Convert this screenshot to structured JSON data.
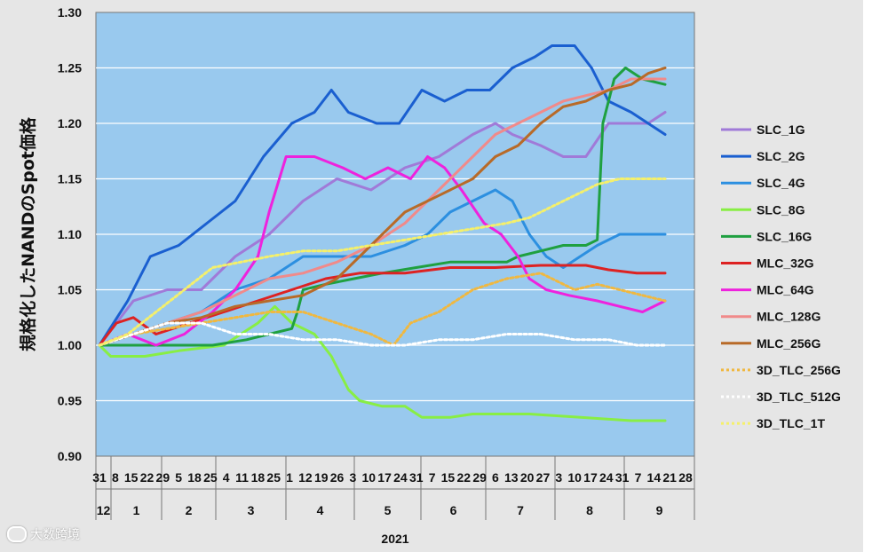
{
  "chart_data": {
    "type": "line",
    "ylabel": "規格化したNANDのSpot価格",
    "ylim": [
      0.9,
      1.3
    ],
    "yticks": [
      "0.90",
      "0.95",
      "1.00",
      "1.05",
      "1.10",
      "1.15",
      "1.20",
      "1.25",
      "1.30"
    ],
    "x_day_labels": [
      "31",
      "8",
      "15",
      "22",
      "29",
      "5",
      "18",
      "25",
      "4",
      "11",
      "18",
      "25",
      "1",
      "12",
      "19",
      "26",
      "3",
      "10",
      "17",
      "24",
      "31",
      "7",
      "15",
      "22",
      "29",
      "6",
      "13",
      "20",
      "27",
      "3",
      "10",
      "17",
      "24",
      "31",
      "7",
      "14",
      "21",
      "28"
    ],
    "x_month_labels": [
      "12",
      "1",
      "2",
      "3",
      "4",
      "5",
      "6",
      "7",
      "8",
      "9"
    ],
    "x_year_label": "2021",
    "legend_position": "right",
    "series": [
      {
        "name": "SLC_1G",
        "color": "#a07ad8",
        "style": "solid",
        "points": [
          [
            0,
            1.0
          ],
          [
            0.03,
            1.02
          ],
          [
            0.06,
            1.04
          ],
          [
            0.12,
            1.05
          ],
          [
            0.18,
            1.05
          ],
          [
            0.24,
            1.08
          ],
          [
            0.3,
            1.1
          ],
          [
            0.36,
            1.13
          ],
          [
            0.42,
            1.15
          ],
          [
            0.48,
            1.14
          ],
          [
            0.54,
            1.16
          ],
          [
            0.6,
            1.17
          ],
          [
            0.66,
            1.19
          ],
          [
            0.7,
            1.2
          ],
          [
            0.73,
            1.19
          ],
          [
            0.78,
            1.18
          ],
          [
            0.82,
            1.17
          ],
          [
            0.86,
            1.17
          ],
          [
            0.9,
            1.2
          ],
          [
            0.94,
            1.2
          ],
          [
            0.97,
            1.2
          ],
          [
            1.0,
            1.21
          ]
        ]
      },
      {
        "name": "SLC_2G",
        "color": "#1a5fd0",
        "style": "solid",
        "points": [
          [
            0,
            1.0
          ],
          [
            0.05,
            1.04
          ],
          [
            0.09,
            1.08
          ],
          [
            0.14,
            1.09
          ],
          [
            0.19,
            1.11
          ],
          [
            0.24,
            1.13
          ],
          [
            0.29,
            1.17
          ],
          [
            0.34,
            1.2
          ],
          [
            0.38,
            1.21
          ],
          [
            0.41,
            1.23
          ],
          [
            0.44,
            1.21
          ],
          [
            0.49,
            1.2
          ],
          [
            0.53,
            1.2
          ],
          [
            0.57,
            1.23
          ],
          [
            0.61,
            1.22
          ],
          [
            0.65,
            1.23
          ],
          [
            0.69,
            1.23
          ],
          [
            0.73,
            1.25
          ],
          [
            0.77,
            1.26
          ],
          [
            0.8,
            1.27
          ],
          [
            0.84,
            1.27
          ],
          [
            0.87,
            1.25
          ],
          [
            0.9,
            1.22
          ],
          [
            0.94,
            1.21
          ],
          [
            0.97,
            1.2
          ],
          [
            1.0,
            1.19
          ]
        ]
      },
      {
        "name": "SLC_4G",
        "color": "#2c8fe0",
        "style": "solid",
        "points": [
          [
            0,
            1.0
          ],
          [
            0.06,
            1.01
          ],
          [
            0.12,
            1.02
          ],
          [
            0.18,
            1.03
          ],
          [
            0.24,
            1.05
          ],
          [
            0.3,
            1.06
          ],
          [
            0.36,
            1.08
          ],
          [
            0.42,
            1.08
          ],
          [
            0.48,
            1.08
          ],
          [
            0.54,
            1.09
          ],
          [
            0.58,
            1.1
          ],
          [
            0.62,
            1.12
          ],
          [
            0.66,
            1.13
          ],
          [
            0.7,
            1.14
          ],
          [
            0.73,
            1.13
          ],
          [
            0.76,
            1.1
          ],
          [
            0.79,
            1.08
          ],
          [
            0.82,
            1.07
          ],
          [
            0.85,
            1.08
          ],
          [
            0.88,
            1.09
          ],
          [
            0.92,
            1.1
          ],
          [
            0.96,
            1.1
          ],
          [
            1.0,
            1.1
          ]
        ]
      },
      {
        "name": "SLC_8G",
        "color": "#88ee44",
        "style": "solid",
        "points": [
          [
            0,
            1.0
          ],
          [
            0.02,
            0.99
          ],
          [
            0.08,
            0.99
          ],
          [
            0.14,
            0.995
          ],
          [
            0.22,
            1.0
          ],
          [
            0.28,
            1.02
          ],
          [
            0.31,
            1.035
          ],
          [
            0.34,
            1.02
          ],
          [
            0.38,
            1.01
          ],
          [
            0.41,
            0.99
          ],
          [
            0.44,
            0.96
          ],
          [
            0.46,
            0.95
          ],
          [
            0.5,
            0.945
          ],
          [
            0.54,
            0.945
          ],
          [
            0.57,
            0.935
          ],
          [
            0.62,
            0.935
          ],
          [
            0.66,
            0.938
          ],
          [
            0.7,
            0.938
          ],
          [
            0.76,
            0.938
          ],
          [
            0.82,
            0.936
          ],
          [
            0.88,
            0.934
          ],
          [
            0.94,
            0.932
          ],
          [
            1.0,
            0.932
          ]
        ]
      },
      {
        "name": "SLC_16G",
        "color": "#1fa040",
        "style": "solid",
        "points": [
          [
            0,
            1.0
          ],
          [
            0.06,
            1.0
          ],
          [
            0.12,
            1.0
          ],
          [
            0.2,
            1.0
          ],
          [
            0.26,
            1.005
          ],
          [
            0.3,
            1.01
          ],
          [
            0.34,
            1.015
          ],
          [
            0.35,
            1.03
          ],
          [
            0.36,
            1.05
          ],
          [
            0.4,
            1.055
          ],
          [
            0.45,
            1.06
          ],
          [
            0.5,
            1.065
          ],
          [
            0.56,
            1.07
          ],
          [
            0.62,
            1.075
          ],
          [
            0.68,
            1.075
          ],
          [
            0.72,
            1.075
          ],
          [
            0.74,
            1.08
          ],
          [
            0.78,
            1.085
          ],
          [
            0.82,
            1.09
          ],
          [
            0.86,
            1.09
          ],
          [
            0.88,
            1.095
          ],
          [
            0.89,
            1.2
          ],
          [
            0.91,
            1.24
          ],
          [
            0.93,
            1.25
          ],
          [
            0.96,
            1.24
          ],
          [
            1.0,
            1.235
          ]
        ]
      },
      {
        "name": "MLC_32G",
        "color": "#dd2222",
        "style": "solid",
        "points": [
          [
            0,
            1.0
          ],
          [
            0.03,
            1.02
          ],
          [
            0.06,
            1.025
          ],
          [
            0.1,
            1.01
          ],
          [
            0.16,
            1.02
          ],
          [
            0.22,
            1.03
          ],
          [
            0.28,
            1.04
          ],
          [
            0.34,
            1.05
          ],
          [
            0.4,
            1.06
          ],
          [
            0.46,
            1.065
          ],
          [
            0.54,
            1.065
          ],
          [
            0.62,
            1.07
          ],
          [
            0.7,
            1.07
          ],
          [
            0.78,
            1.072
          ],
          [
            0.86,
            1.072
          ],
          [
            0.9,
            1.068
          ],
          [
            0.95,
            1.065
          ],
          [
            1.0,
            1.065
          ]
        ]
      },
      {
        "name": "MLC_64G",
        "color": "#ee22dd",
        "style": "solid",
        "points": [
          [
            0,
            1.0
          ],
          [
            0.05,
            1.01
          ],
          [
            0.1,
            1.0
          ],
          [
            0.15,
            1.01
          ],
          [
            0.2,
            1.03
          ],
          [
            0.24,
            1.05
          ],
          [
            0.28,
            1.08
          ],
          [
            0.3,
            1.12
          ],
          [
            0.33,
            1.17
          ],
          [
            0.38,
            1.17
          ],
          [
            0.43,
            1.16
          ],
          [
            0.47,
            1.15
          ],
          [
            0.51,
            1.16
          ],
          [
            0.55,
            1.15
          ],
          [
            0.58,
            1.17
          ],
          [
            0.61,
            1.16
          ],
          [
            0.64,
            1.14
          ],
          [
            0.68,
            1.11
          ],
          [
            0.71,
            1.1
          ],
          [
            0.74,
            1.08
          ],
          [
            0.76,
            1.06
          ],
          [
            0.79,
            1.05
          ],
          [
            0.83,
            1.045
          ],
          [
            0.88,
            1.04
          ],
          [
            0.92,
            1.035
          ],
          [
            0.96,
            1.03
          ],
          [
            1.0,
            1.04
          ]
        ]
      },
      {
        "name": "MLC_128G",
        "color": "#f08a8a",
        "style": "solid",
        "points": [
          [
            0,
            1.0
          ],
          [
            0.06,
            1.01
          ],
          [
            0.12,
            1.02
          ],
          [
            0.18,
            1.03
          ],
          [
            0.24,
            1.045
          ],
          [
            0.3,
            1.06
          ],
          [
            0.36,
            1.065
          ],
          [
            0.42,
            1.075
          ],
          [
            0.48,
            1.09
          ],
          [
            0.54,
            1.11
          ],
          [
            0.6,
            1.14
          ],
          [
            0.66,
            1.17
          ],
          [
            0.7,
            1.19
          ],
          [
            0.74,
            1.2
          ],
          [
            0.78,
            1.21
          ],
          [
            0.82,
            1.22
          ],
          [
            0.86,
            1.225
          ],
          [
            0.9,
            1.23
          ],
          [
            0.94,
            1.24
          ],
          [
            1.0,
            1.24
          ]
        ]
      },
      {
        "name": "MLC_256G",
        "color": "#b86a28",
        "style": "solid",
        "points": [
          [
            0,
            1.0
          ],
          [
            0.06,
            1.01
          ],
          [
            0.12,
            1.02
          ],
          [
            0.18,
            1.025
          ],
          [
            0.24,
            1.035
          ],
          [
            0.3,
            1.04
          ],
          [
            0.36,
            1.045
          ],
          [
            0.42,
            1.06
          ],
          [
            0.48,
            1.09
          ],
          [
            0.54,
            1.12
          ],
          [
            0.6,
            1.135
          ],
          [
            0.66,
            1.15
          ],
          [
            0.7,
            1.17
          ],
          [
            0.74,
            1.18
          ],
          [
            0.78,
            1.2
          ],
          [
            0.82,
            1.215
          ],
          [
            0.86,
            1.22
          ],
          [
            0.9,
            1.23
          ],
          [
            0.94,
            1.235
          ],
          [
            0.97,
            1.245
          ],
          [
            1.0,
            1.25
          ]
        ]
      },
      {
        "name": "3D_TLC_256G",
        "color": "#f0b840",
        "style": "dotted",
        "points": [
          [
            0,
            1.0
          ],
          [
            0.06,
            1.01
          ],
          [
            0.12,
            1.015
          ],
          [
            0.18,
            1.02
          ],
          [
            0.24,
            1.025
          ],
          [
            0.3,
            1.03
          ],
          [
            0.36,
            1.03
          ],
          [
            0.42,
            1.02
          ],
          [
            0.48,
            1.01
          ],
          [
            0.52,
            1.0
          ],
          [
            0.55,
            1.02
          ],
          [
            0.6,
            1.03
          ],
          [
            0.66,
            1.05
          ],
          [
            0.72,
            1.06
          ],
          [
            0.78,
            1.065
          ],
          [
            0.84,
            1.05
          ],
          [
            0.88,
            1.055
          ],
          [
            0.92,
            1.05
          ],
          [
            0.96,
            1.045
          ],
          [
            1.0,
            1.04
          ]
        ]
      },
      {
        "name": "3D_TLC_512G",
        "color": "#ffffff",
        "style": "dotted",
        "points": [
          [
            0,
            1.0
          ],
          [
            0.06,
            1.01
          ],
          [
            0.12,
            1.02
          ],
          [
            0.18,
            1.02
          ],
          [
            0.24,
            1.01
          ],
          [
            0.3,
            1.01
          ],
          [
            0.36,
            1.005
          ],
          [
            0.42,
            1.005
          ],
          [
            0.48,
            1.0
          ],
          [
            0.54,
            1.0
          ],
          [
            0.6,
            1.005
          ],
          [
            0.66,
            1.005
          ],
          [
            0.72,
            1.01
          ],
          [
            0.78,
            1.01
          ],
          [
            0.84,
            1.005
          ],
          [
            0.9,
            1.005
          ],
          [
            0.95,
            1.0
          ],
          [
            1.0,
            1.0
          ]
        ]
      },
      {
        "name": "3D_TLC_1T",
        "color": "#f5f06a",
        "style": "dotted",
        "points": [
          [
            0,
            1.0
          ],
          [
            0.05,
            1.01
          ],
          [
            0.1,
            1.03
          ],
          [
            0.15,
            1.05
          ],
          [
            0.2,
            1.07
          ],
          [
            0.25,
            1.075
          ],
          [
            0.3,
            1.08
          ],
          [
            0.36,
            1.085
          ],
          [
            0.42,
            1.085
          ],
          [
            0.48,
            1.09
          ],
          [
            0.54,
            1.095
          ],
          [
            0.6,
            1.1
          ],
          [
            0.66,
            1.105
          ],
          [
            0.72,
            1.11
          ],
          [
            0.76,
            1.115
          ],
          [
            0.8,
            1.125
          ],
          [
            0.84,
            1.135
          ],
          [
            0.88,
            1.145
          ],
          [
            0.92,
            1.15
          ],
          [
            0.96,
            1.15
          ],
          [
            1.0,
            1.15
          ]
        ]
      }
    ]
  },
  "watermark": "大数跨境"
}
